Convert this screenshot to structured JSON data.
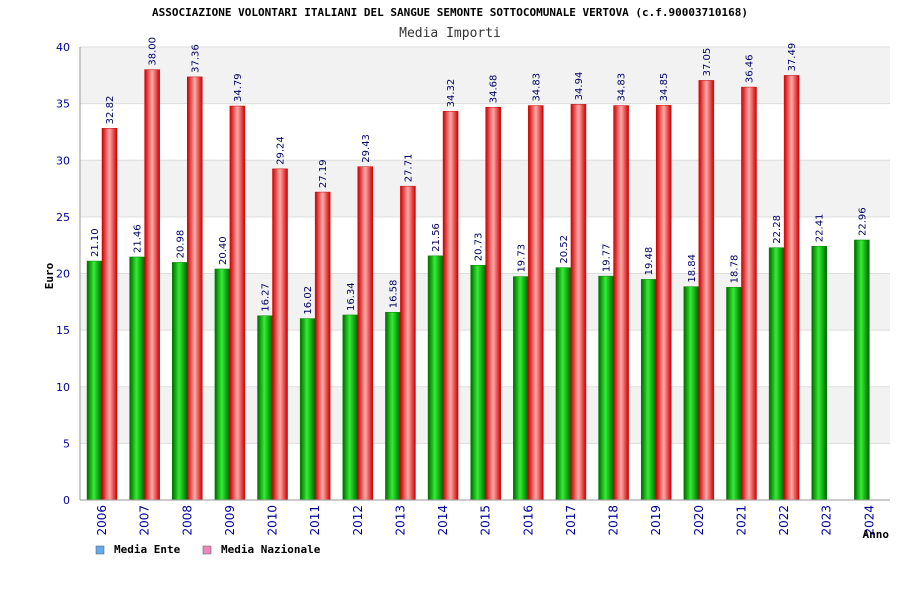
{
  "chart_data": {
    "type": "bar",
    "title": "ASSOCIAZIONE VOLONTARI ITALIANI DEL SANGUE SEMONTE SOTTOCOMUNALE VERTOVA (c.f.90003710168)",
    "subtitle": "Media Importi",
    "xlabel": "Anno",
    "ylabel": "Euro",
    "ylim": [
      0,
      40
    ],
    "yticks": [
      "0",
      "5",
      "10",
      "15",
      "20",
      "25",
      "30",
      "35",
      "40"
    ],
    "categories": [
      "2006",
      "2007",
      "2008",
      "2009",
      "2010",
      "2011",
      "2012",
      "2013",
      "2014",
      "2015",
      "2016",
      "2017",
      "2018",
      "2019",
      "2020",
      "2021",
      "2022",
      "2023",
      "2024"
    ],
    "series": [
      {
        "name": "Media Ente",
        "color": "#00aa00",
        "legend_color": "#66aaee",
        "values": [
          21.1,
          21.46,
          20.98,
          20.4,
          16.27,
          16.02,
          16.34,
          16.58,
          21.56,
          20.73,
          19.73,
          20.52,
          19.77,
          19.48,
          18.84,
          18.78,
          22.28,
          22.41,
          22.96
        ],
        "labels": [
          "21.10",
          "21.46",
          "20.98",
          "20.40",
          "16.27",
          "16.02",
          "16.34",
          "16.58",
          "21.56",
          "20.73",
          "19.73",
          "20.52",
          "19.77",
          "19.48",
          "18.84",
          "18.78",
          "22.28",
          "22.41",
          "22.96"
        ]
      },
      {
        "name": "Media Nazionale",
        "color": "#ee1111",
        "legend_color": "#ee88bb",
        "values": [
          32.82,
          38.0,
          37.36,
          34.79,
          29.24,
          27.19,
          29.43,
          27.71,
          34.32,
          34.68,
          34.83,
          34.94,
          34.83,
          34.85,
          37.05,
          36.46,
          37.49,
          null,
          null
        ],
        "labels": [
          "32.82",
          "38.00",
          "37.36",
          "34.79",
          "29.24",
          "27.19",
          "29.43",
          "27.71",
          "34.32",
          "34.68",
          "34.83",
          "34.94",
          "34.83",
          "34.85",
          "37.05",
          "36.46",
          "37.49",
          null,
          null
        ]
      }
    ],
    "grid": true,
    "legend": "bottom-left"
  }
}
